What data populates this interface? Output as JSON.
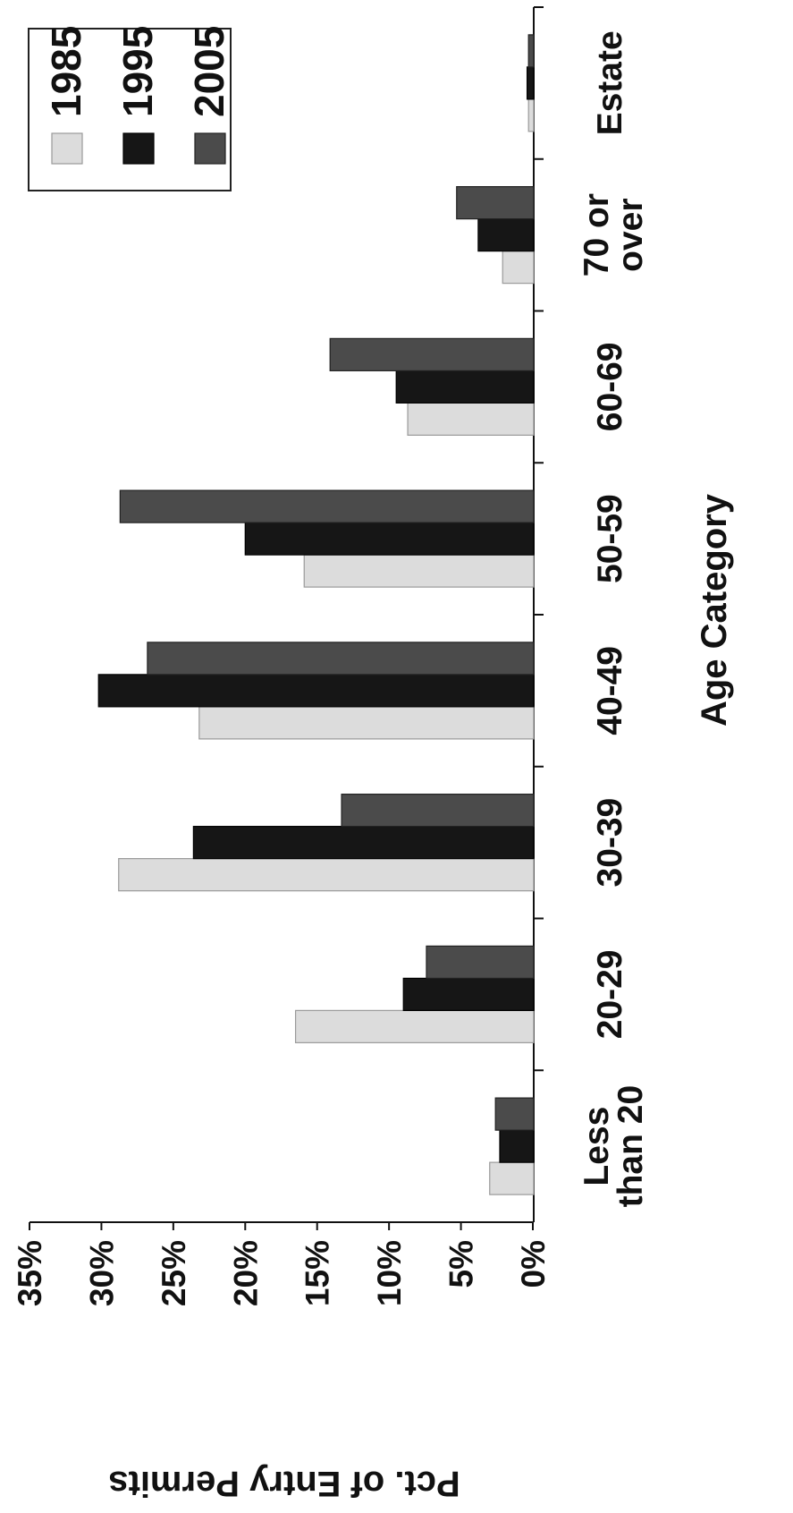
{
  "chart_data": {
    "type": "bar",
    "orientation": "vertical",
    "xlabel": "Age Category",
    "ylabel": "Pct. of Entry Permits",
    "ylim": [
      0,
      0.35
    ],
    "yticks": [
      {
        "value": 0,
        "label": "0%"
      },
      {
        "value": 0.05,
        "label": "5%"
      },
      {
        "value": 0.1,
        "label": "10%"
      },
      {
        "value": 0.15,
        "label": "15%"
      },
      {
        "value": 0.2,
        "label": "20%"
      },
      {
        "value": 0.25,
        "label": "25%"
      },
      {
        "value": 0.3,
        "label": "30%"
      },
      {
        "value": 0.35,
        "label": "35%"
      }
    ],
    "categories": [
      [
        "Less",
        "than 20"
      ],
      [
        "20-29"
      ],
      [
        "30-39"
      ],
      [
        "40-49"
      ],
      [
        "50-59"
      ],
      [
        "60-69"
      ],
      [
        "70 or",
        "over"
      ],
      [
        "Estate"
      ]
    ],
    "series": [
      {
        "name": "1985",
        "color": "#dcdcdc",
        "stroke": "#9a9a9a",
        "values": [
          0.03,
          0.165,
          0.288,
          0.232,
          0.159,
          0.087,
          0.021,
          0.003
        ]
      },
      {
        "name": "1995",
        "color": "#161616",
        "stroke": "#000000",
        "values": [
          0.023,
          0.09,
          0.236,
          0.302,
          0.2,
          0.095,
          0.038,
          0.004
        ]
      },
      {
        "name": "2005",
        "color": "#4b4b4b",
        "stroke": "#222222",
        "values": [
          0.026,
          0.074,
          0.133,
          0.268,
          0.287,
          0.141,
          0.053,
          0.003
        ]
      }
    ],
    "legend": {
      "position": "top-right"
    },
    "grid": false
  }
}
